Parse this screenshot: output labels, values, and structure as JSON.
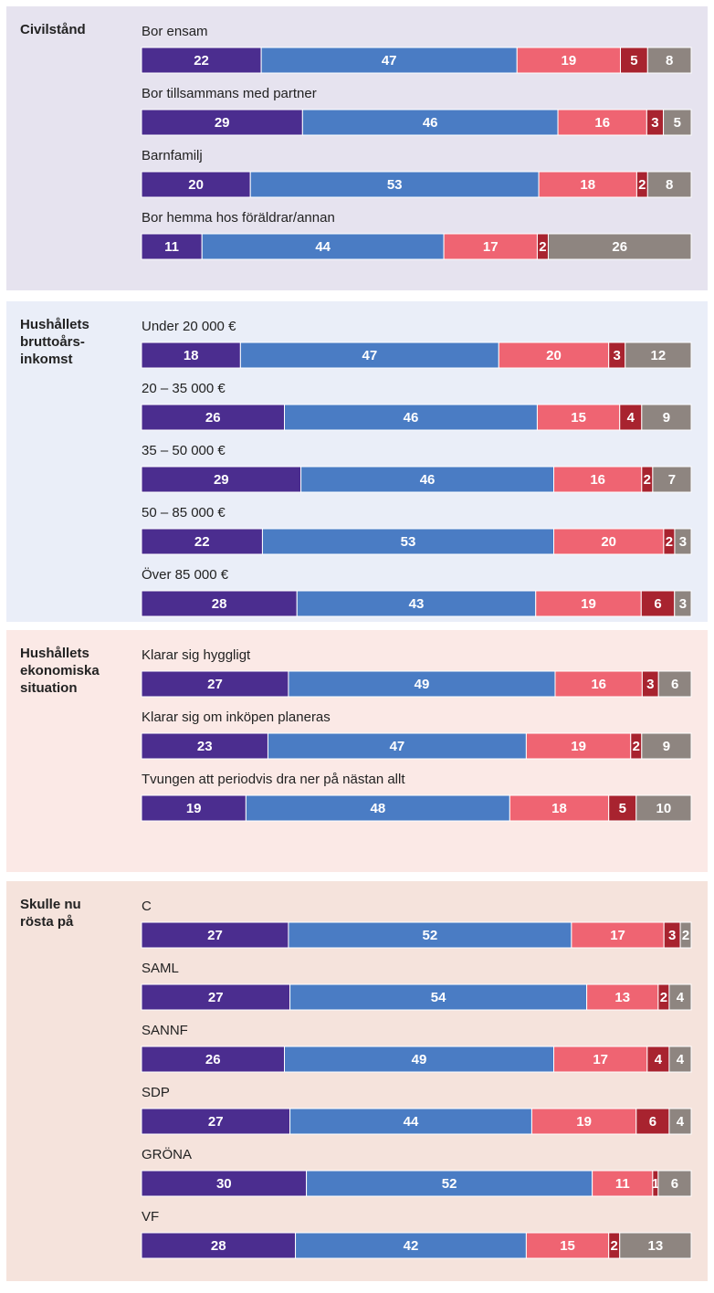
{
  "chart_data": [
    {
      "type": "bar",
      "title": "Civilstånd",
      "categories": [
        "Bor ensam",
        "Bor tillsammans med partner",
        "Barnfamilj",
        "Bor hemma hos föräldrar/annan"
      ],
      "series": [
        {
          "color": "#4b2d8f",
          "values": [
            22,
            29,
            20,
            11
          ]
        },
        {
          "color": "#4a7cc4",
          "values": [
            47,
            46,
            53,
            44
          ]
        },
        {
          "color": "#ef6472",
          "values": [
            19,
            16,
            18,
            17
          ]
        },
        {
          "color": "#a8232f",
          "values": [
            5,
            3,
            2,
            2
          ]
        },
        {
          "color": "#8e8580",
          "values": [
            8,
            5,
            8,
            26
          ]
        }
      ],
      "background": "#e6e3ef"
    },
    {
      "type": "bar",
      "title": "Hushållets\nbruttoårs-\ninkomst",
      "categories": [
        "Under  20 000 €",
        "20 – 35 000 €",
        "35 – 50 000 €",
        "50 – 85 000 €",
        "Över  85 000 €"
      ],
      "series": [
        {
          "color": "#4b2d8f",
          "values": [
            18,
            26,
            29,
            22,
            28
          ]
        },
        {
          "color": "#4a7cc4",
          "values": [
            47,
            46,
            46,
            53,
            43
          ]
        },
        {
          "color": "#ef6472",
          "values": [
            20,
            15,
            16,
            20,
            19
          ]
        },
        {
          "color": "#a8232f",
          "values": [
            3,
            4,
            2,
            2,
            6
          ]
        },
        {
          "color": "#8e8580",
          "values": [
            12,
            9,
            7,
            3,
            3
          ]
        }
      ],
      "background": "#eaeef8"
    },
    {
      "type": "bar",
      "title": "Hushållets\nekonomiska\nsituation",
      "categories": [
        "Klarar sig hyggligt",
        "Klarar sig om inköpen planeras",
        "Tvungen att periodvis dra ner på nästan allt"
      ],
      "series": [
        {
          "color": "#4b2d8f",
          "values": [
            27,
            23,
            19
          ]
        },
        {
          "color": "#4a7cc4",
          "values": [
            49,
            47,
            48
          ]
        },
        {
          "color": "#ef6472",
          "values": [
            16,
            19,
            18
          ]
        },
        {
          "color": "#a8232f",
          "values": [
            3,
            2,
            5
          ]
        },
        {
          "color": "#8e8580",
          "values": [
            6,
            9,
            10
          ]
        }
      ],
      "background": "#fbe9e6"
    },
    {
      "type": "bar",
      "title": "Skulle nu\nrösta på",
      "categories": [
        "C",
        "SAML",
        "SANNF",
        "SDP",
        "GRÖNA",
        "VF"
      ],
      "series": [
        {
          "color": "#4b2d8f",
          "values": [
            27,
            27,
            26,
            27,
            30,
            28
          ]
        },
        {
          "color": "#4a7cc4",
          "values": [
            52,
            54,
            49,
            44,
            52,
            42
          ]
        },
        {
          "color": "#ef6472",
          "values": [
            17,
            13,
            17,
            19,
            11,
            15
          ]
        },
        {
          "color": "#a8232f",
          "values": [
            3,
            2,
            4,
            6,
            1,
            2
          ]
        },
        {
          "color": "#8e8580",
          "values": [
            2,
            4,
            4,
            4,
            6,
            13
          ]
        }
      ],
      "background": "#f5e3dc"
    }
  ]
}
